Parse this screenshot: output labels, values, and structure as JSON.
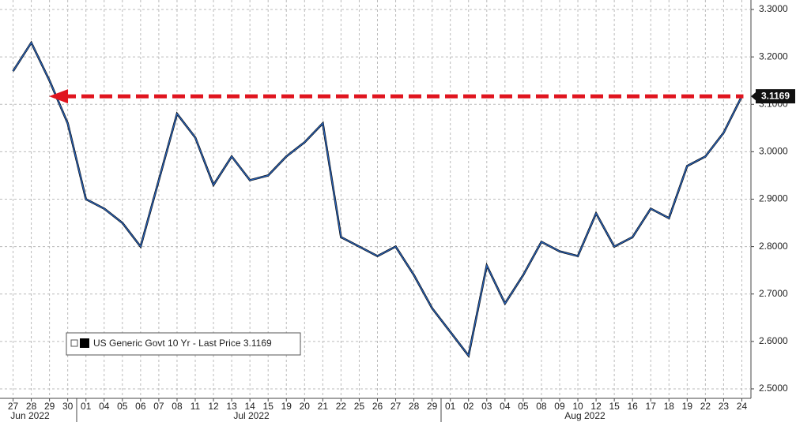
{
  "chart_data": {
    "type": "line",
    "categories": [
      "27",
      "28",
      "29",
      "30",
      "01",
      "04",
      "05",
      "06",
      "07",
      "08",
      "11",
      "12",
      "13",
      "14",
      "15",
      "19",
      "20",
      "21",
      "22",
      "25",
      "26",
      "27",
      "28",
      "29",
      "01",
      "02",
      "03",
      "04",
      "05",
      "08",
      "09",
      "10",
      "12",
      "15",
      "16",
      "17",
      "18",
      "19",
      "22",
      "23",
      "24"
    ],
    "x_group_labels": [
      "Jun 2022",
      "Jul 2022",
      "Aug 2022"
    ],
    "series": [
      {
        "name": "US Generic Govt 10 Yr - Last Price 3.1169",
        "color": "#2a63b8",
        "values": [
          3.17,
          3.23,
          3.15,
          3.06,
          2.9,
          2.88,
          2.85,
          2.8,
          2.94,
          3.08,
          3.03,
          2.93,
          2.99,
          2.94,
          2.95,
          2.99,
          3.02,
          3.06,
          2.82,
          2.8,
          2.78,
          2.8,
          2.74,
          2.67,
          2.62,
          2.57,
          2.76,
          2.68,
          2.74,
          2.81,
          2.79,
          2.78,
          2.87,
          2.8,
          2.82,
          2.88,
          2.86,
          2.97,
          2.99,
          3.04,
          3.1169
        ]
      }
    ],
    "ylim": [
      2.48,
      3.32
    ],
    "yticks": [
      {
        "value": 2.5,
        "label": "2.5000"
      },
      {
        "value": 2.6,
        "label": "2.6000"
      },
      {
        "value": 2.7,
        "label": "2.7000"
      },
      {
        "value": 2.8,
        "label": "2.8000"
      },
      {
        "value": 2.9,
        "label": "2.9000"
      },
      {
        "value": 3.0,
        "label": "3.0000"
      },
      {
        "value": 3.1,
        "label": "3.1000"
      },
      {
        "value": 3.2,
        "label": "3.2000"
      },
      {
        "value": 3.3,
        "label": "3.3000"
      }
    ],
    "grid": true,
    "annotation_color": "#e0141e"
  }
}
